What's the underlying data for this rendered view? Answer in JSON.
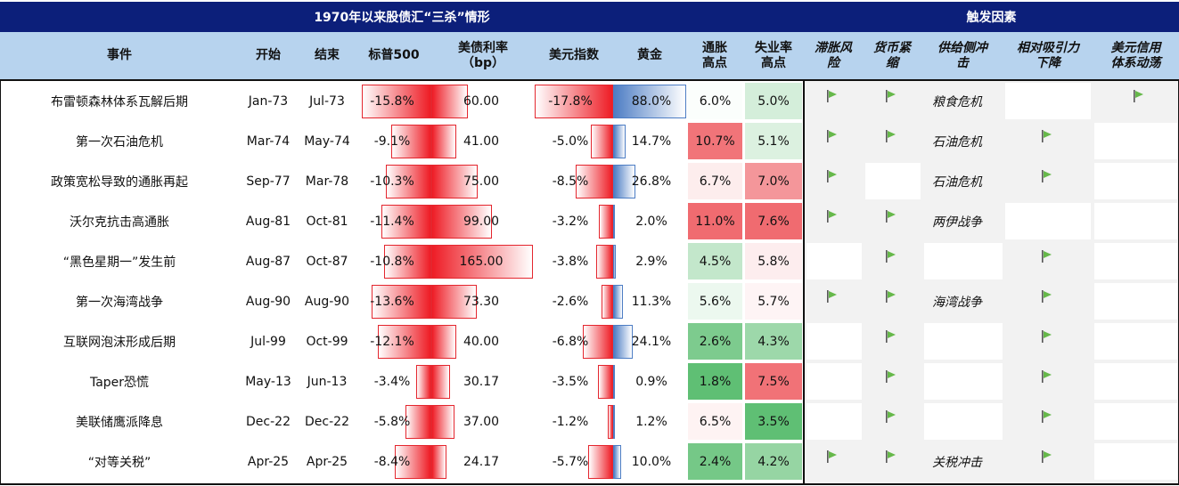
{
  "title_left": "1970年以来股债汇“三杀”情形",
  "title_right": "触发因素",
  "columns": {
    "event": "事件",
    "start": "开始",
    "end": "结束",
    "sp500": "标普500",
    "ust": "美债利率\n（bp）",
    "dxy": "美元指数",
    "gold": "黄金",
    "infl_peak": "通胀\n高点",
    "unemp_peak": "失业率\n高点",
    "stag": "滞胀风\n险",
    "tight": "货币紧\n缩",
    "supply": "供给侧冲\n击",
    "rel": "相对吸引力\n下降",
    "usd_sys": "美元信用\n体系动荡"
  },
  "colors": {
    "header_dark": "#0c1f7a",
    "header_light": "#b7d3ee",
    "bar_red": "#ee1c25",
    "bar_blue": "#4d7dc4",
    "flag_green": "#66b84a",
    "trigger_bg": "#f2f2f2"
  },
  "rows": [
    {
      "event": "布雷顿森林体系瓦解后期",
      "start": "Jan-73",
      "end": "Jul-73",
      "sp500": -15.8,
      "sp500_label": "-15.8%",
      "ust": 60.0,
      "ust_label": "60.00",
      "dxy": -17.8,
      "dxy_label": "-17.8%",
      "gold": 88.0,
      "gold_label": "88.0%",
      "infl": 6.0,
      "infl_label": "6.0%",
      "unemp": 5.0,
      "unemp_label": "5.0%",
      "stag": true,
      "tight": true,
      "supply": "粮食危机",
      "rel": false,
      "usd_sys": true
    },
    {
      "event": "第一次石油危机",
      "start": "Mar-74",
      "end": "May-74",
      "sp500": -9.1,
      "sp500_label": "-9.1%",
      "ust": 41.0,
      "ust_label": "41.00",
      "dxy": -5.0,
      "dxy_label": "-5.0%",
      "gold": 14.7,
      "gold_label": "14.7%",
      "infl": 10.7,
      "infl_label": "10.7%",
      "unemp": 5.1,
      "unemp_label": "5.1%",
      "stag": true,
      "tight": true,
      "supply": "石油危机",
      "rel": true,
      "usd_sys": false
    },
    {
      "event": "政策宽松导致的通胀再起",
      "start": "Sep-77",
      "end": "Mar-78",
      "sp500": -10.3,
      "sp500_label": "-10.3%",
      "ust": 75.0,
      "ust_label": "75.00",
      "dxy": -8.5,
      "dxy_label": "-8.5%",
      "gold": 26.8,
      "gold_label": "26.8%",
      "infl": 6.7,
      "infl_label": "6.7%",
      "unemp": 7.0,
      "unemp_label": "7.0%",
      "stag": true,
      "tight": false,
      "supply": "石油危机",
      "rel": true,
      "usd_sys": false
    },
    {
      "event": "沃尔克抗击高通胀",
      "start": "Aug-81",
      "end": "Oct-81",
      "sp500": -11.4,
      "sp500_label": "-11.4%",
      "ust": 99.0,
      "ust_label": "99.00",
      "dxy": -3.2,
      "dxy_label": "-3.2%",
      "gold": 2.0,
      "gold_label": "2.0%",
      "infl": 11.0,
      "infl_label": "11.0%",
      "unemp": 7.6,
      "unemp_label": "7.6%",
      "stag": true,
      "tight": true,
      "supply": "两伊战争",
      "rel": false,
      "usd_sys": false
    },
    {
      "event": "“黑色星期一”发生前",
      "start": "Aug-87",
      "end": "Oct-87",
      "sp500": -10.8,
      "sp500_label": "-10.8%",
      "ust": 165.0,
      "ust_label": "165.00",
      "dxy": -3.8,
      "dxy_label": "-3.8%",
      "gold": 2.9,
      "gold_label": "2.9%",
      "infl": 4.5,
      "infl_label": "4.5%",
      "unemp": 5.8,
      "unemp_label": "5.8%",
      "stag": false,
      "tight": true,
      "supply": "",
      "rel": true,
      "usd_sys": false
    },
    {
      "event": "第一次海湾战争",
      "start": "Aug-90",
      "end": "Aug-90",
      "sp500": -13.6,
      "sp500_label": "-13.6%",
      "ust": 73.3,
      "ust_label": "73.30",
      "dxy": -2.6,
      "dxy_label": "-2.6%",
      "gold": 11.3,
      "gold_label": "11.3%",
      "infl": 5.6,
      "infl_label": "5.6%",
      "unemp": 5.7,
      "unemp_label": "5.7%",
      "stag": true,
      "tight": true,
      "supply": "海湾战争",
      "rel": true,
      "usd_sys": false
    },
    {
      "event": "互联网泡沫形成后期",
      "start": "Jul-99",
      "end": "Oct-99",
      "sp500": -12.1,
      "sp500_label": "-12.1%",
      "ust": 40.0,
      "ust_label": "40.00",
      "dxy": -6.8,
      "dxy_label": "-6.8%",
      "gold": 24.1,
      "gold_label": "24.1%",
      "infl": 2.6,
      "infl_label": "2.6%",
      "unemp": 4.3,
      "unemp_label": "4.3%",
      "stag": false,
      "tight": true,
      "supply": "",
      "rel": true,
      "usd_sys": false
    },
    {
      "event": "Taper恐慌",
      "start": "May-13",
      "end": "Jun-13",
      "sp500": -3.4,
      "sp500_label": "-3.4%",
      "ust": 30.17,
      "ust_label": "30.17",
      "dxy": -3.5,
      "dxy_label": "-3.5%",
      "gold": 0.9,
      "gold_label": "0.9%",
      "infl": 1.8,
      "infl_label": "1.8%",
      "unemp": 7.5,
      "unemp_label": "7.5%",
      "stag": false,
      "tight": true,
      "supply": "",
      "rel": true,
      "usd_sys": false
    },
    {
      "event": "美联储鹰派降息",
      "start": "Dec-22",
      "end": "Dec-22",
      "sp500": -5.8,
      "sp500_label": "-5.8%",
      "ust": 37.0,
      "ust_label": "37.00",
      "dxy": -1.2,
      "dxy_label": "-1.2%",
      "gold": 1.2,
      "gold_label": "1.2%",
      "infl": 6.5,
      "infl_label": "6.5%",
      "unemp": 3.5,
      "unemp_label": "3.5%",
      "stag": false,
      "tight": true,
      "supply": "",
      "rel": true,
      "usd_sys": false
    },
    {
      "event": "“对等关税”",
      "start": "Apr-25",
      "end": "Apr-25",
      "sp500": -8.4,
      "sp500_label": "-8.4%",
      "ust": 24.17,
      "ust_label": "24.17",
      "dxy": -5.7,
      "dxy_label": "-5.7%",
      "gold": 10.0,
      "gold_label": "10.0%",
      "infl": 2.4,
      "infl_label": "2.4%",
      "unemp": 4.2,
      "unemp_label": "4.2%",
      "stag": true,
      "tight": true,
      "supply": "关税冲击",
      "rel": true,
      "usd_sys": false
    }
  ]
}
